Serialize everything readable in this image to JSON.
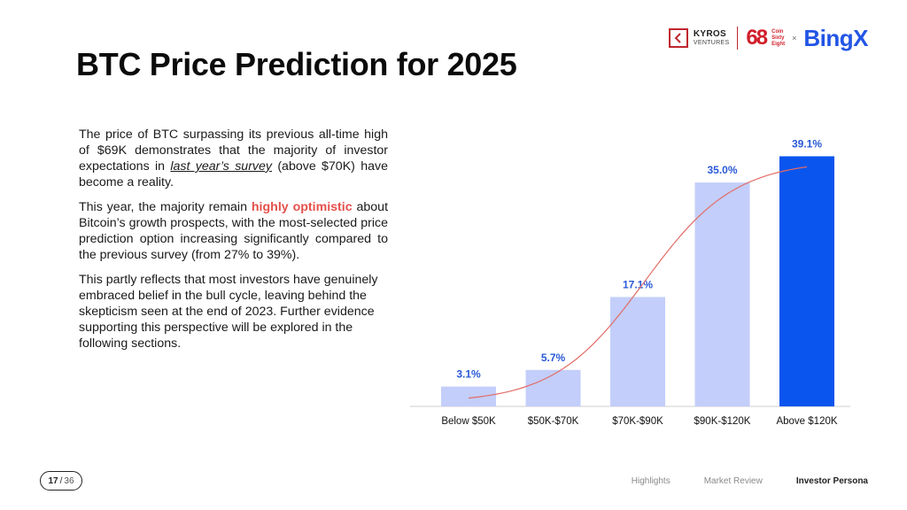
{
  "logos": {
    "kyros_name": "KYROS",
    "kyros_sub": "VENTURES",
    "coin68_number": "68",
    "coin68_text": [
      "Coin",
      "Sixty",
      "Eight"
    ],
    "separator": "×",
    "bingx": "BingX"
  },
  "title": "BTC Price Prediction for 2025",
  "paragraphs": {
    "p1_a": "The price of BTC surpassing its previous all-time high of $69K demonstrates that the majority of investor expectations in ",
    "p1_link": "last year’s survey",
    "p1_b": " (above $70K) have become a reality.",
    "p2_a": "This year, the majority remain ",
    "p2_highlight": "highly optimistic",
    "p2_b": " about Bitcoin’s growth prospects, with the most-selected price prediction option increasing significantly compared to the previous survey (from 27% to 39%).",
    "p3": "This partly reflects that most investors have genuinely embraced belief in the bull cycle, leaving behind the skepticism seen at the end of 2023. Further evidence supporting this perspective will be explored in the following sections."
  },
  "chart_data": {
    "type": "bar",
    "title": "",
    "xlabel": "",
    "ylabel": "",
    "categories": [
      "Below $50K",
      "$50K-$70K",
      "$70K-$90K",
      "$90K-$120K",
      "Above $120K"
    ],
    "values": [
      3.1,
      5.7,
      17.1,
      35.0,
      39.1
    ],
    "value_labels": [
      "3.1%",
      "5.7%",
      "17.1%",
      "35.0%",
      "39.1%"
    ],
    "ylim": [
      0,
      40
    ],
    "grid": false,
    "trendline": true,
    "colors": {
      "bar": "#c3cefa",
      "highlight_bar": "#0a55ee",
      "trend": "#e26c67",
      "axis": "#cfcfcf"
    }
  },
  "pagination": {
    "current": "17",
    "separator": "/",
    "total": "36"
  },
  "footer_nav": [
    "Highlights",
    "Market Review",
    "Investor Persona"
  ]
}
